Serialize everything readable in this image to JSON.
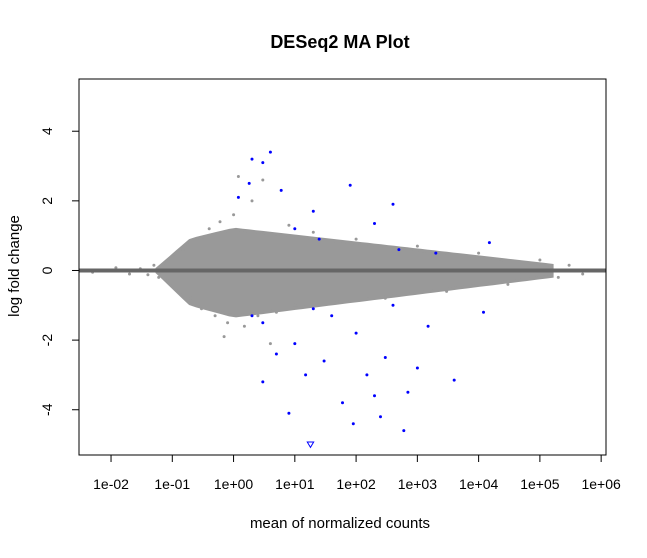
{
  "chart_data": {
    "type": "scatter",
    "title": "DESeq2 MA Plot",
    "xlabel": "mean of normalized counts",
    "ylabel": "log fold change",
    "x_scale": "log10",
    "xlim": [
      0.003,
      1200000
    ],
    "ylim": [
      -5.3,
      5.5
    ],
    "x_ticks": [
      {
        "value": 0.01,
        "label": "1e-02"
      },
      {
        "value": 0.1,
        "label": "1e-01"
      },
      {
        "value": 1,
        "label": "1e+00"
      },
      {
        "value": 10,
        "label": "1e+01"
      },
      {
        "value": 100,
        "label": "1e+02"
      },
      {
        "value": 1000,
        "label": "1e+03"
      },
      {
        "value": 10000,
        "label": "1e+04"
      },
      {
        "value": 100000,
        "label": "1e+05"
      },
      {
        "value": 1000000,
        "label": "1e+06"
      }
    ],
    "y_ticks": [
      {
        "value": -4,
        "label": "-4"
      },
      {
        "value": -2,
        "label": "-2"
      },
      {
        "value": 0,
        "label": "0"
      },
      {
        "value": 2,
        "label": "2"
      },
      {
        "value": 4,
        "label": "4"
      }
    ],
    "reference_line": {
      "y": 0,
      "color": "#666666"
    },
    "grid": false,
    "legend": "none",
    "colors": {
      "background": "#ffffff",
      "not_significant": "#999999",
      "significant": "#0000ff",
      "reference_line": "#666666"
    },
    "series": [
      {
        "group": "not significant",
        "color": "#999999",
        "points": [
          [
            0.005,
            -0.05
          ],
          [
            0.012,
            0.08
          ],
          [
            0.02,
            -0.1
          ],
          [
            0.03,
            0.05
          ],
          [
            0.04,
            -0.12
          ],
          [
            0.05,
            0.15
          ],
          [
            0.06,
            -0.2
          ],
          [
            0.08,
            0.25
          ],
          [
            0.09,
            -0.3
          ],
          [
            0.1,
            0.4
          ],
          [
            0.12,
            -0.5
          ],
          [
            0.15,
            0.6
          ],
          [
            0.2,
            -0.8
          ],
          [
            0.25,
            0.9
          ],
          [
            0.3,
            -1.1
          ],
          [
            0.4,
            1.2
          ],
          [
            0.5,
            -1.3
          ],
          [
            0.6,
            1.4
          ],
          [
            0.8,
            -1.5
          ],
          [
            1.0,
            1.6
          ],
          [
            1.5,
            -1.6
          ],
          [
            2.0,
            2.0
          ],
          [
            2.5,
            -1.3
          ],
          [
            3.0,
            2.6
          ],
          [
            5.0,
            -1.2
          ],
          [
            8.0,
            1.3
          ],
          [
            10.0,
            -1.0
          ],
          [
            20.0,
            1.1
          ],
          [
            50.0,
            -0.9
          ],
          [
            100.0,
            0.9
          ],
          [
            300.0,
            -0.8
          ],
          [
            1000.0,
            0.7
          ],
          [
            3000.0,
            -0.6
          ],
          [
            10000.0,
            0.5
          ],
          [
            30000.0,
            -0.4
          ],
          [
            100000.0,
            0.3
          ],
          [
            200000.0,
            -0.2
          ],
          [
            300000.0,
            0.15
          ],
          [
            500000.0,
            -0.1
          ],
          [
            1.2,
            2.7
          ],
          [
            4.0,
            -2.1
          ],
          [
            0.7,
            -1.9
          ]
        ]
      },
      {
        "group": "significant",
        "color": "#0000ff",
        "points": [
          [
            2.0,
            3.2
          ],
          [
            3.0,
            3.1
          ],
          [
            4.0,
            3.4
          ],
          [
            1.8,
            2.5
          ],
          [
            6.0,
            2.3
          ],
          [
            80.0,
            2.45
          ],
          [
            400.0,
            1.9
          ],
          [
            200.0,
            1.35
          ],
          [
            20.0,
            1.7
          ],
          [
            1.2,
            2.1
          ],
          [
            10.0,
            1.2
          ],
          [
            25.0,
            0.9
          ],
          [
            500.0,
            0.6
          ],
          [
            2000.0,
            0.5
          ],
          [
            15000.0,
            0.8
          ],
          [
            3.0,
            -1.5
          ],
          [
            10.0,
            -2.1
          ],
          [
            8.0,
            -4.1
          ],
          [
            18.0,
            -5.0
          ],
          [
            90.0,
            -4.4
          ],
          [
            250.0,
            -4.2
          ],
          [
            600.0,
            -4.6
          ],
          [
            60.0,
            -3.8
          ],
          [
            4000.0,
            -3.15
          ],
          [
            700.0,
            -3.5
          ],
          [
            150.0,
            -3.0
          ],
          [
            30.0,
            -2.6
          ],
          [
            5.0,
            -2.4
          ],
          [
            300.0,
            -2.5
          ],
          [
            1500.0,
            -1.6
          ],
          [
            12000.0,
            -1.2
          ],
          [
            400.0,
            -1.0
          ],
          [
            40.0,
            -1.3
          ],
          [
            100.0,
            -1.8
          ],
          [
            20.0,
            -1.1
          ],
          [
            2.0,
            -1.3
          ],
          [
            1000.0,
            -2.8
          ],
          [
            200.0,
            -3.6
          ],
          [
            3.0,
            -3.2
          ],
          [
            15.0,
            -3.0
          ]
        ]
      }
    ]
  }
}
